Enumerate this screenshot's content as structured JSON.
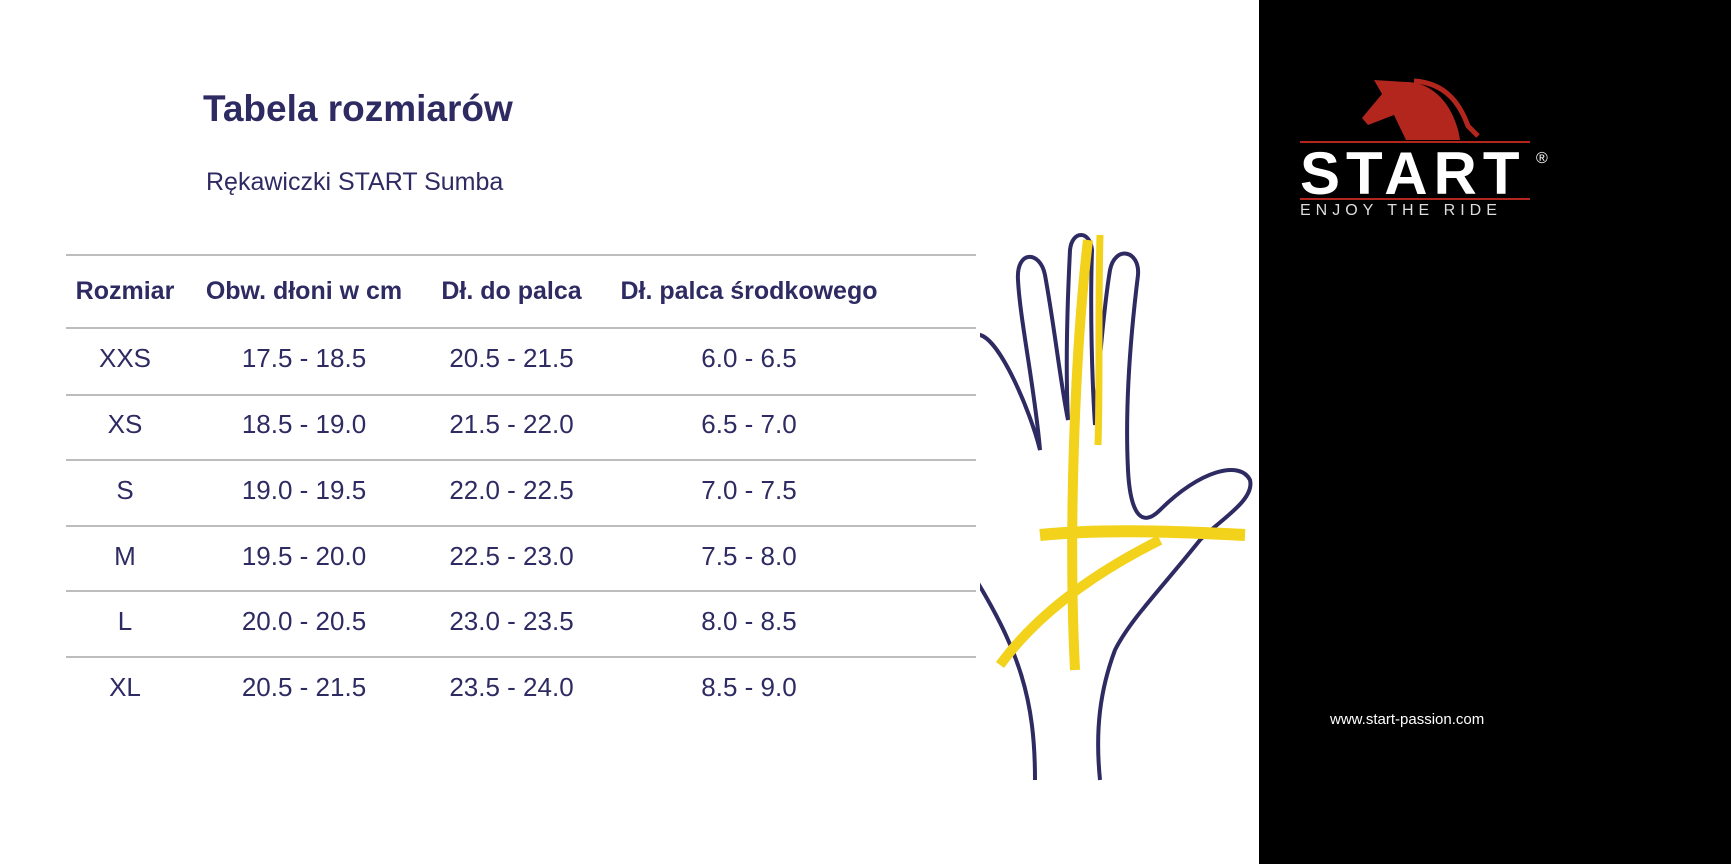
{
  "title": "Tabela rozmiarów",
  "subtitle": "Rękawiczki START Sumba",
  "table": {
    "headers": [
      "Rozmiar",
      "Obw. dłoni w cm",
      "Dł. do palca",
      "Dł. palca środkowego"
    ],
    "rows": [
      [
        "XXS",
        "17.5 - 18.5",
        "20.5 - 21.5",
        "6.0 - 6.5"
      ],
      [
        "XS",
        "18.5 - 19.0",
        "21.5 - 22.0",
        "6.5 - 7.0"
      ],
      [
        "S",
        "19.0 - 19.5",
        "22.0 - 22.5",
        "7.0 - 7.5"
      ],
      [
        "M",
        "19.5 - 20.0",
        "22.5 - 23.0",
        "7.5 - 8.0"
      ],
      [
        "L",
        "20.0 - 20.5",
        "23.0 - 23.5",
        "8.0 - 8.5"
      ],
      [
        "XL",
        "20.5 - 21.5",
        "23.5 - 24.0",
        "8.5 - 9.0"
      ]
    ]
  },
  "brand": {
    "logo_text": "START",
    "registered": "®",
    "slogan": "ENJOY THE RIDE",
    "url": "www.start-passion.com"
  },
  "colors": {
    "text": "#2e2a62",
    "logo_red": "#b3261e",
    "tape": "#f2d21a",
    "panel": "#000000"
  }
}
